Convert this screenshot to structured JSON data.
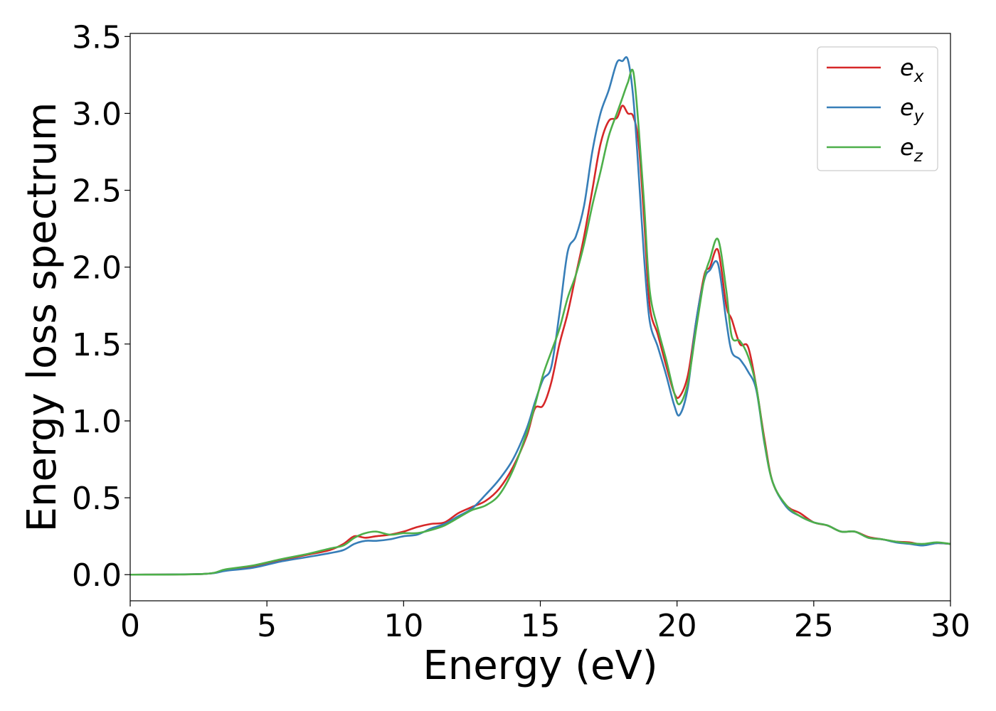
{
  "chart_data": {
    "type": "line",
    "title": "",
    "xlabel": "Energy (eV)",
    "ylabel": "Energy loss spectrum",
    "xlim": [
      0,
      30
    ],
    "ylim": [
      -0.17,
      3.52
    ],
    "xticks": [
      0,
      5,
      10,
      15,
      20,
      25,
      30
    ],
    "xtick_labels": [
      "0",
      "5",
      "10",
      "15",
      "20",
      "25",
      "30"
    ],
    "yticks": [
      0.0,
      0.5,
      1.0,
      1.5,
      2.0,
      2.5,
      3.0,
      3.5
    ],
    "ytick_labels": [
      "0.0",
      "0.5",
      "1.0",
      "1.5",
      "2.0",
      "2.5",
      "3.0",
      "3.5"
    ],
    "grid": false,
    "legend_position": "top-right",
    "series": [
      {
        "name": "e_x",
        "legend_base": "e",
        "legend_sub": "x",
        "color": "#d62728",
        "x": [
          0,
          2.7,
          3.5,
          4.5,
          5.5,
          6.5,
          7.3,
          7.8,
          8.2,
          8.6,
          9.0,
          9.5,
          10.0,
          10.5,
          11.0,
          11.5,
          12.0,
          12.5,
          13.0,
          13.5,
          14.0,
          14.5,
          14.8,
          15.1,
          15.4,
          15.7,
          16.0,
          16.3,
          16.6,
          16.9,
          17.2,
          17.5,
          17.8,
          18.0,
          18.2,
          18.4,
          18.6,
          18.8,
          19.0,
          19.3,
          19.6,
          19.9,
          20.1,
          20.4,
          20.7,
          21.0,
          21.2,
          21.5,
          21.8,
          22.0,
          22.3,
          22.6,
          22.9,
          23.2,
          23.5,
          24.0,
          24.5,
          25.0,
          25.5,
          26.0,
          26.5,
          27.0,
          27.5,
          28.0,
          28.5,
          29.0,
          29.5,
          30.0
        ],
        "y": [
          0.0,
          0.005,
          0.03,
          0.055,
          0.095,
          0.13,
          0.16,
          0.2,
          0.25,
          0.24,
          0.25,
          0.26,
          0.28,
          0.31,
          0.33,
          0.34,
          0.4,
          0.44,
          0.48,
          0.56,
          0.7,
          0.9,
          1.08,
          1.1,
          1.25,
          1.5,
          1.7,
          1.95,
          2.2,
          2.5,
          2.8,
          2.95,
          2.97,
          3.05,
          3.0,
          2.98,
          2.8,
          2.3,
          1.75,
          1.56,
          1.36,
          1.18,
          1.16,
          1.3,
          1.65,
          1.95,
          2.0,
          2.11,
          1.75,
          1.66,
          1.5,
          1.48,
          1.22,
          0.88,
          0.6,
          0.45,
          0.4,
          0.34,
          0.32,
          0.28,
          0.28,
          0.245,
          0.23,
          0.215,
          0.21,
          0.195,
          0.205,
          0.2
        ]
      },
      {
        "name": "e_y",
        "legend_base": "e",
        "legend_sub": "y",
        "color": "#377eb8",
        "x": [
          0,
          2.7,
          3.5,
          4.5,
          5.5,
          6.5,
          7.3,
          7.8,
          8.2,
          8.6,
          9.0,
          9.5,
          10.0,
          10.5,
          11.0,
          11.5,
          12.0,
          12.5,
          13.0,
          13.5,
          14.0,
          14.5,
          14.8,
          15.1,
          15.4,
          15.7,
          16.0,
          16.3,
          16.6,
          16.9,
          17.2,
          17.5,
          17.8,
          18.0,
          18.2,
          18.4,
          18.6,
          18.8,
          19.0,
          19.3,
          19.6,
          19.9,
          20.1,
          20.4,
          20.7,
          21.0,
          21.2,
          21.5,
          21.8,
          22.0,
          22.3,
          22.6,
          22.9,
          23.2,
          23.5,
          24.0,
          24.5,
          25.0,
          25.5,
          26.0,
          26.5,
          27.0,
          27.5,
          28.0,
          28.5,
          29.0,
          29.5,
          30.0
        ],
        "y": [
          0.0,
          0.005,
          0.025,
          0.045,
          0.085,
          0.115,
          0.14,
          0.16,
          0.2,
          0.22,
          0.22,
          0.23,
          0.25,
          0.26,
          0.3,
          0.33,
          0.38,
          0.43,
          0.52,
          0.62,
          0.75,
          0.95,
          1.12,
          1.27,
          1.35,
          1.7,
          2.1,
          2.2,
          2.4,
          2.75,
          3.0,
          3.15,
          3.33,
          3.34,
          3.35,
          3.1,
          2.6,
          2.05,
          1.65,
          1.48,
          1.3,
          1.1,
          1.04,
          1.22,
          1.65,
          1.92,
          1.98,
          2.02,
          1.65,
          1.45,
          1.4,
          1.32,
          1.2,
          0.85,
          0.6,
          0.44,
          0.38,
          0.34,
          0.32,
          0.28,
          0.28,
          0.24,
          0.23,
          0.21,
          0.2,
          0.19,
          0.205,
          0.2
        ]
      },
      {
        "name": "e_z",
        "legend_base": "e",
        "legend_sub": "z",
        "color": "#4daf4a",
        "x": [
          0,
          2.7,
          3.5,
          4.5,
          5.5,
          6.5,
          7.3,
          7.8,
          8.2,
          8.6,
          9.0,
          9.5,
          10.0,
          10.5,
          11.0,
          11.5,
          12.0,
          12.5,
          13.0,
          13.5,
          14.0,
          14.5,
          14.8,
          15.1,
          15.4,
          15.7,
          16.0,
          16.3,
          16.6,
          16.9,
          17.2,
          17.5,
          17.8,
          18.0,
          18.2,
          18.4,
          18.6,
          18.8,
          19.0,
          19.3,
          19.6,
          19.9,
          20.1,
          20.4,
          20.7,
          21.0,
          21.2,
          21.5,
          21.8,
          22.0,
          22.3,
          22.6,
          22.9,
          23.2,
          23.5,
          24.0,
          24.5,
          25.0,
          25.5,
          26.0,
          26.5,
          27.0,
          27.5,
          28.0,
          28.5,
          29.0,
          29.5,
          30.0
        ],
        "y": [
          0.0,
          0.005,
          0.035,
          0.06,
          0.1,
          0.135,
          0.17,
          0.19,
          0.24,
          0.27,
          0.28,
          0.26,
          0.27,
          0.27,
          0.29,
          0.32,
          0.37,
          0.42,
          0.45,
          0.52,
          0.68,
          0.92,
          1.1,
          1.3,
          1.45,
          1.6,
          1.8,
          1.95,
          2.15,
          2.4,
          2.62,
          2.85,
          3.0,
          3.1,
          3.2,
          3.27,
          2.9,
          2.4,
          1.85,
          1.6,
          1.4,
          1.18,
          1.11,
          1.25,
          1.6,
          1.93,
          2.05,
          2.18,
          1.85,
          1.55,
          1.52,
          1.42,
          1.22,
          0.86,
          0.6,
          0.45,
          0.38,
          0.34,
          0.32,
          0.28,
          0.28,
          0.24,
          0.23,
          0.215,
          0.205,
          0.2,
          0.21,
          0.2
        ]
      }
    ]
  }
}
